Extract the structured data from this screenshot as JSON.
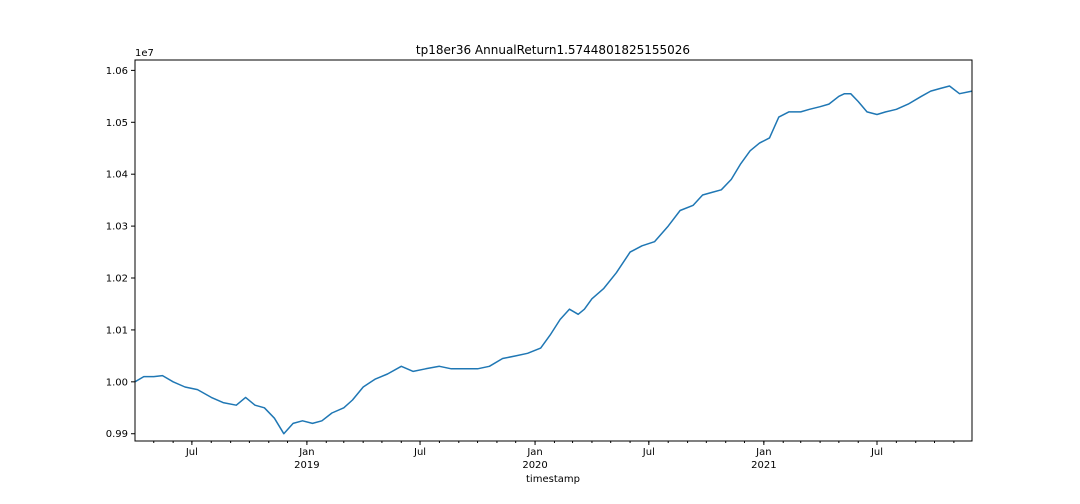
{
  "chart_data": {
    "type": "line",
    "title": "tp18er36 AnnualReturn1.5744801825155026",
    "xlabel": "timestamp",
    "ylabel": "",
    "y_offset_label": "1e7",
    "x_range": [
      "2018-04-01",
      "2021-11-30"
    ],
    "ylim": [
      9.886,
      10.62
    ],
    "y_ticks": [
      {
        "value": 9.9,
        "label": "0.99"
      },
      {
        "value": 10.0,
        "label": "1.00"
      },
      {
        "value": 10.1,
        "label": "1.01"
      },
      {
        "value": 10.2,
        "label": "1.02"
      },
      {
        "value": 10.3,
        "label": "1.03"
      },
      {
        "value": 10.4,
        "label": "1.04"
      },
      {
        "value": 10.5,
        "label": "1.05"
      },
      {
        "value": 10.6,
        "label": "1.06"
      }
    ],
    "x_major_ticks": [
      {
        "date": "2018-07-01",
        "label": "Jul",
        "sublabel": ""
      },
      {
        "date": "2019-01-01",
        "label": "Jan",
        "sublabel": "2019"
      },
      {
        "date": "2019-07-01",
        "label": "Jul",
        "sublabel": ""
      },
      {
        "date": "2020-01-01",
        "label": "Jan",
        "sublabel": "2020"
      },
      {
        "date": "2020-07-01",
        "label": "Jul",
        "sublabel": ""
      },
      {
        "date": "2021-01-01",
        "label": "Jan",
        "sublabel": "2021"
      },
      {
        "date": "2021-07-01",
        "label": "Jul",
        "sublabel": ""
      }
    ],
    "grid": false,
    "line_color": "#1f77b4",
    "series": [
      {
        "x": [
          "2018-04-01",
          "2018-04-15",
          "2018-05-01",
          "2018-05-15",
          "2018-06-01",
          "2018-06-20",
          "2018-07-10",
          "2018-08-01",
          "2018-08-20",
          "2018-09-10",
          "2018-09-25",
          "2018-10-10",
          "2018-10-25",
          "2018-11-10",
          "2018-11-25",
          "2018-12-10",
          "2018-12-25",
          "2019-01-10",
          "2019-01-25",
          "2019-02-10",
          "2019-03-01",
          "2019-03-15",
          "2019-04-01",
          "2019-04-20",
          "2019-05-10",
          "2019-06-01",
          "2019-06-20",
          "2019-07-10",
          "2019-08-01",
          "2019-08-20",
          "2019-09-10",
          "2019-10-01",
          "2019-10-20",
          "2019-11-10",
          "2019-12-01",
          "2019-12-20",
          "2020-01-10",
          "2020-01-25",
          "2020-02-10",
          "2020-02-25",
          "2020-03-10",
          "2020-03-20",
          "2020-04-01",
          "2020-04-20",
          "2020-05-10",
          "2020-06-01",
          "2020-06-20",
          "2020-07-10",
          "2020-08-01",
          "2020-08-20",
          "2020-09-10",
          "2020-09-25",
          "2020-10-10",
          "2020-10-25",
          "2020-11-10",
          "2020-11-25",
          "2020-12-10",
          "2020-12-25",
          "2021-01-10",
          "2021-01-25",
          "2021-02-10",
          "2021-03-01",
          "2021-03-15",
          "2021-04-01",
          "2021-04-15",
          "2021-05-01",
          "2021-05-10",
          "2021-05-20",
          "2021-06-01",
          "2021-06-15",
          "2021-07-01",
          "2021-07-15",
          "2021-08-01",
          "2021-08-20",
          "2021-09-10",
          "2021-09-25",
          "2021-10-10",
          "2021-10-25",
          "2021-11-10",
          "2021-11-30"
        ],
        "values": [
          10.0,
          10.01,
          10.01,
          10.012,
          10.0,
          9.99,
          9.985,
          9.97,
          9.96,
          9.955,
          9.97,
          9.955,
          9.95,
          9.93,
          9.9,
          9.92,
          9.925,
          9.92,
          9.925,
          9.94,
          9.95,
          9.965,
          9.99,
          10.005,
          10.015,
          10.03,
          10.02,
          10.025,
          10.03,
          10.025,
          10.025,
          10.025,
          10.03,
          10.045,
          10.05,
          10.055,
          10.065,
          10.09,
          10.12,
          10.14,
          10.13,
          10.14,
          10.16,
          10.18,
          10.21,
          10.25,
          10.262,
          10.27,
          10.3,
          10.33,
          10.34,
          10.36,
          10.365,
          10.37,
          10.39,
          10.42,
          10.445,
          10.46,
          10.47,
          10.51,
          10.52,
          10.52,
          10.525,
          10.53,
          10.535,
          10.55,
          10.555,
          10.555,
          10.54,
          10.52,
          10.515,
          10.52,
          10.525,
          10.535,
          10.55,
          10.56,
          10.565,
          10.57,
          10.555,
          10.56
        ]
      }
    ]
  }
}
